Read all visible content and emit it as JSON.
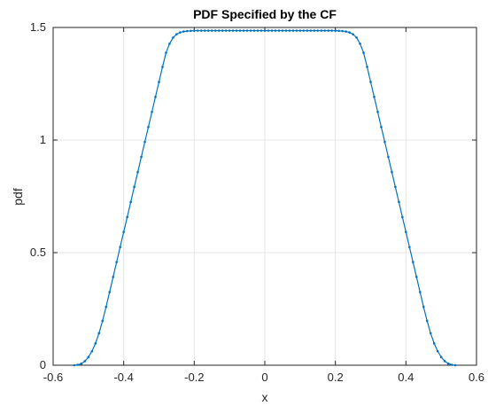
{
  "chart_data": {
    "type": "line",
    "title": "PDF Specified by the CF",
    "xlabel": "x",
    "ylabel": "pdf",
    "xlim": [
      -0.6,
      0.6
    ],
    "ylim": [
      0,
      1.5
    ],
    "xticks": [
      -0.6,
      -0.4,
      -0.2,
      0,
      0.2,
      0.4,
      0.6
    ],
    "xtick_labels": [
      "-0.6",
      "-0.4",
      "-0.2",
      "0",
      "0.2",
      "0.4",
      "0.6"
    ],
    "yticks": [
      0,
      0.5,
      1,
      1.5
    ],
    "ytick_labels": [
      "0",
      "0.5",
      "1",
      "1.5"
    ],
    "grid": true,
    "box": true,
    "series": [
      {
        "color": "#0072BD",
        "marker": "dot",
        "x": [
          -0.54,
          -0.53,
          -0.52,
          -0.51,
          -0.5,
          -0.49,
          -0.48,
          -0.47,
          -0.46,
          -0.45,
          -0.44,
          -0.43,
          -0.42,
          -0.41,
          -0.4,
          -0.39,
          -0.38,
          -0.37,
          -0.36,
          -0.35,
          -0.34,
          -0.33,
          -0.32,
          -0.31,
          -0.3,
          -0.29,
          -0.28,
          -0.27,
          -0.26,
          -0.25,
          -0.24,
          -0.23,
          -0.22,
          -0.21,
          -0.2,
          -0.19,
          -0.18,
          -0.17,
          -0.16,
          -0.15,
          -0.14,
          -0.13,
          -0.12,
          -0.11,
          -0.1,
          -0.09,
          -0.08,
          -0.07,
          -0.06,
          -0.05,
          -0.04,
          -0.03,
          -0.02,
          -0.01,
          0.0,
          0.01,
          0.02,
          0.03,
          0.04,
          0.05,
          0.06,
          0.07,
          0.08,
          0.09,
          0.1,
          0.11,
          0.12,
          0.13,
          0.14,
          0.15,
          0.16,
          0.17,
          0.18,
          0.19,
          0.2,
          0.21,
          0.22,
          0.23,
          0.24,
          0.25,
          0.26,
          0.27,
          0.28,
          0.29,
          0.3,
          0.31,
          0.32,
          0.33,
          0.34,
          0.35,
          0.36,
          0.37,
          0.38,
          0.39,
          0.4,
          0.41,
          0.42,
          0.43,
          0.44,
          0.45,
          0.46,
          0.47,
          0.48,
          0.49,
          0.5,
          0.51,
          0.52,
          0.53,
          0.54
        ],
        "y": [
          0.0,
          0.002,
          0.007,
          0.018,
          0.036,
          0.062,
          0.097,
          0.142,
          0.197,
          0.259,
          0.325,
          0.392,
          0.458,
          0.525,
          0.592,
          0.658,
          0.725,
          0.792,
          0.858,
          0.925,
          0.992,
          1.058,
          1.125,
          1.192,
          1.258,
          1.325,
          1.388,
          1.428,
          1.455,
          1.47,
          1.478,
          1.482,
          1.484,
          1.485,
          1.486,
          1.486,
          1.486,
          1.486,
          1.486,
          1.486,
          1.486,
          1.486,
          1.486,
          1.486,
          1.486,
          1.486,
          1.486,
          1.486,
          1.486,
          1.486,
          1.486,
          1.486,
          1.486,
          1.486,
          1.486,
          1.486,
          1.486,
          1.486,
          1.486,
          1.486,
          1.486,
          1.486,
          1.486,
          1.486,
          1.486,
          1.486,
          1.486,
          1.486,
          1.486,
          1.486,
          1.486,
          1.486,
          1.486,
          1.486,
          1.486,
          1.485,
          1.484,
          1.482,
          1.478,
          1.47,
          1.455,
          1.428,
          1.388,
          1.325,
          1.258,
          1.192,
          1.125,
          1.058,
          0.992,
          0.925,
          0.858,
          0.792,
          0.725,
          0.658,
          0.592,
          0.525,
          0.458,
          0.392,
          0.325,
          0.259,
          0.197,
          0.142,
          0.097,
          0.062,
          0.036,
          0.018,
          0.007,
          0.002,
          0.0
        ]
      }
    ]
  }
}
